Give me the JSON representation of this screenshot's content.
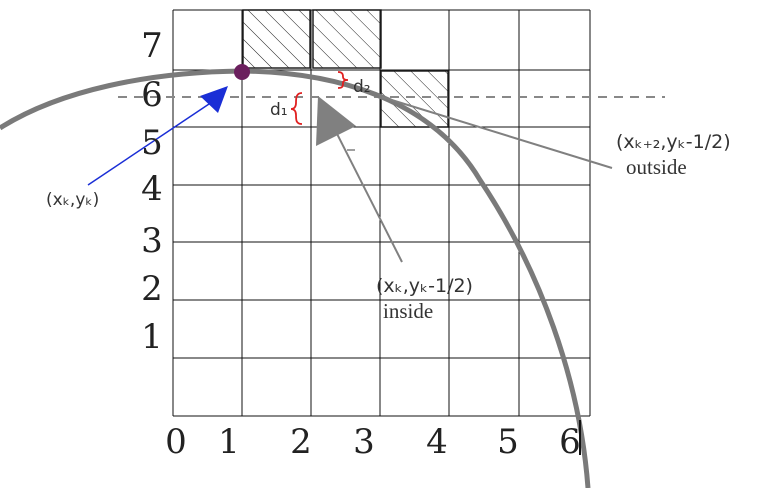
{
  "y_axis_labels": [
    "7",
    "6",
    "5",
    "4",
    "3",
    "2",
    "1"
  ],
  "x_axis_labels": [
    "0",
    "1",
    "2",
    "3",
    "4",
    "5",
    "6"
  ],
  "point_label_current": "(xₖ,yₖ)",
  "midpoint_inside_coords": "(xₖ,yₖ-1/2)",
  "midpoint_inside_word": "inside",
  "midpoint_outside_coords": "(xₖ₊₂,yₖ-1/2)",
  "midpoint_outside_word": "outside",
  "d1_label": "d₁",
  "d2_label": "d₂",
  "colors": {
    "grid": "#111111",
    "circle": "#7a7a7a",
    "point": "#6b1f5e",
    "blue_arrow": "#1a2ed6",
    "gray_arrow": "#808080",
    "brace": "#e02020",
    "dashed": "#888888"
  }
}
